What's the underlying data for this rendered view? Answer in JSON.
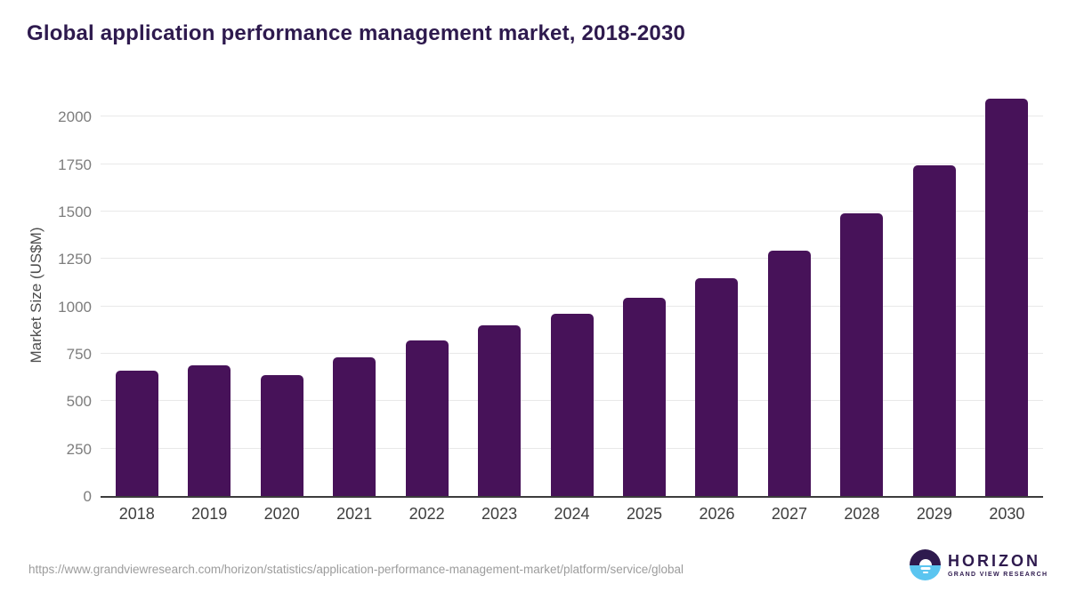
{
  "page": {
    "title": "Global application performance management market, 2018-2030"
  },
  "chart_data": {
    "type": "bar",
    "title": "Global application performance management market, 2018-2030",
    "xlabel": "",
    "ylabel": "Market Size (US$M)",
    "categories": [
      "2018",
      "2019",
      "2020",
      "2021",
      "2022",
      "2023",
      "2024",
      "2025",
      "2026",
      "2027",
      "2028",
      "2029",
      "2030"
    ],
    "values": [
      660,
      690,
      640,
      730,
      820,
      900,
      960,
      1045,
      1150,
      1295,
      1490,
      1745,
      2095
    ],
    "yticks": [
      0,
      250,
      500,
      750,
      1000,
      1250,
      1500,
      1750,
      2000
    ],
    "ylim": [
      0,
      2100
    ],
    "grid": true,
    "legend": false,
    "bar_color": "#471259"
  },
  "footer": {
    "source_url": "https://www.grandviewresearch.com/horizon/statistics/application-performance-management-market/platform/service/global",
    "logo_title": "HORIZON",
    "logo_subtitle": "GRAND VIEW RESEARCH"
  },
  "colors": {
    "title": "#2e1a4e",
    "bar": "#471259",
    "gridline": "#e8e8e8",
    "axis_line": "#3c3c3c",
    "ytick_label": "#7d7d7d",
    "xtick_label": "#3d3d3d",
    "url_text": "#9c9c9c",
    "logo_purple": "#2e1a4e",
    "logo_blue": "#5bc5f0"
  }
}
